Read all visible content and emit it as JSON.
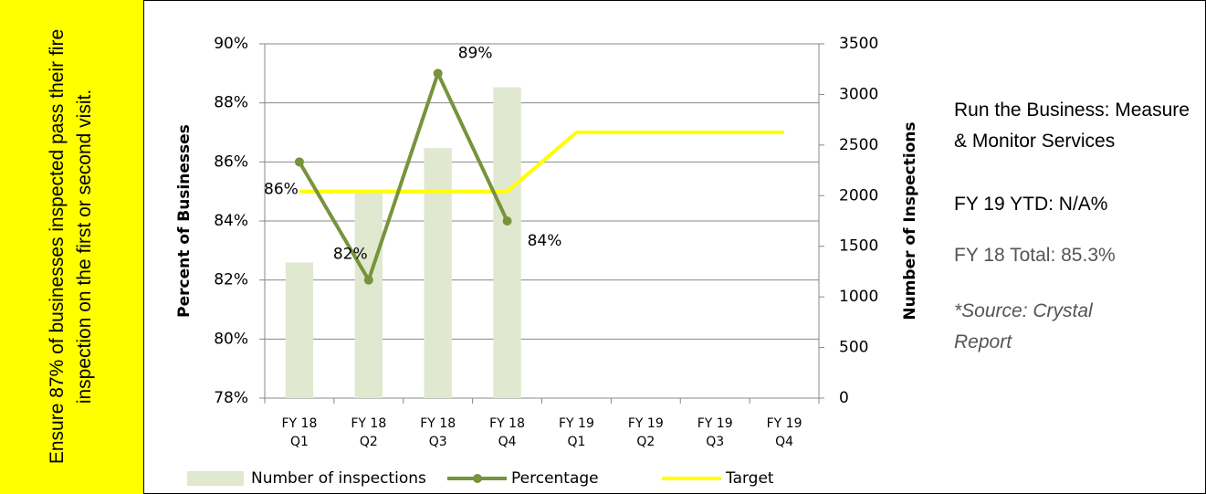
{
  "goal": "Ensure 87% of businesses inspected pass their fire inspection on the first or second visit.",
  "chart_data": {
    "type": "bar-line",
    "y_label": "Percent of Businesses",
    "y2_label": "Number of Inspections",
    "categories": [
      "FY 18\nQ1",
      "FY 18\nQ2",
      "FY 18\nQ3",
      "FY 18\nQ4",
      "FY 19\nQ1",
      "FY 19\nQ2",
      "FY 19\nQ3",
      "FY 19\nQ4"
    ],
    "ylim": [
      78,
      90
    ],
    "yticks": [
      {
        "value": 78,
        "label": "78%"
      },
      {
        "value": 80,
        "label": "80%"
      },
      {
        "value": 82,
        "label": "82%"
      },
      {
        "value": 84,
        "label": "84%"
      },
      {
        "value": 86,
        "label": "86%"
      },
      {
        "value": 88,
        "label": "88%"
      },
      {
        "value": 90,
        "label": "90%"
      }
    ],
    "y2lim": [
      0,
      3500
    ],
    "y2ticks": [
      0,
      500,
      1000,
      1500,
      2000,
      2500,
      3000,
      3500
    ],
    "series": [
      {
        "name": "Number of inspections",
        "type": "bar",
        "axis": "y2",
        "color": "#e0e8cf",
        "values": [
          1340,
          2040,
          2470,
          3070,
          null,
          null,
          null,
          null
        ]
      },
      {
        "name": "Percentage",
        "type": "line",
        "color": "#77933c",
        "values": [
          86,
          82,
          89,
          84,
          null,
          null,
          null,
          null
        ],
        "value_labels": [
          "86%",
          "82%",
          "89%",
          "84%",
          null,
          null,
          null,
          null
        ]
      },
      {
        "name": "Target",
        "type": "line",
        "color": "#ffff00",
        "values": [
          85,
          85,
          85,
          85,
          87,
          87,
          87,
          87
        ]
      }
    ],
    "grid": true,
    "legend": "bottom"
  },
  "side": {
    "heading": "Run the Business: Measure & Monitor Services",
    "ytd": "FY 19 YTD:  N/A%",
    "total": "FY 18 Total:  85.3%",
    "source": "*Source:  Crystal Report"
  }
}
